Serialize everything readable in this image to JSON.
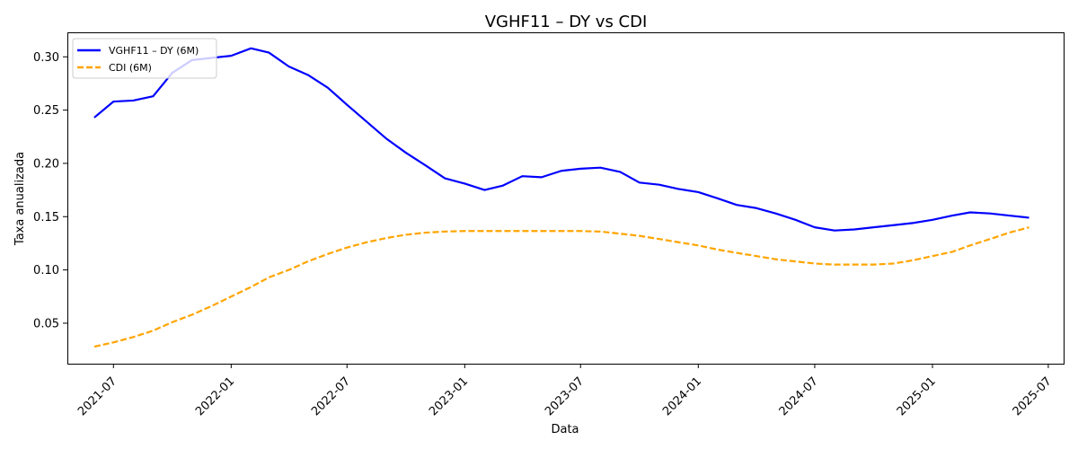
{
  "chart_data": {
    "type": "line",
    "title": "VGHF11 – DY vs CDI",
    "xlabel": "Data",
    "ylabel": "Taxa anualizada",
    "x_ticks": [
      "2021-07",
      "2022-01",
      "2022-07",
      "2023-01",
      "2023-07",
      "2024-01",
      "2024-07",
      "2025-01",
      "2025-07"
    ],
    "y_ticks": [
      "0.05",
      "0.10",
      "0.15",
      "0.20",
      "0.25",
      "0.30"
    ],
    "xlim": [
      "2021-04-20",
      "2025-07-25"
    ],
    "ylim": [
      0.012,
      0.323
    ],
    "legend_position": "top-left",
    "grid": false,
    "series": [
      {
        "name": "VGHF11 – DY (6M)",
        "color": "#0000ff",
        "style": "solid",
        "points": [
          [
            "2021-06-01",
            0.243
          ],
          [
            "2021-07-01",
            0.258
          ],
          [
            "2021-08-01",
            0.259
          ],
          [
            "2021-09-01",
            0.263
          ],
          [
            "2021-10-01",
            0.285
          ],
          [
            "2021-11-01",
            0.297
          ],
          [
            "2021-12-01",
            0.299
          ],
          [
            "2022-01-01",
            0.301
          ],
          [
            "2022-02-01",
            0.308
          ],
          [
            "2022-03-01",
            0.304
          ],
          [
            "2022-04-01",
            0.291
          ],
          [
            "2022-05-01",
            0.283
          ],
          [
            "2022-06-01",
            0.271
          ],
          [
            "2022-07-01",
            0.255
          ],
          [
            "2022-08-01",
            0.239
          ],
          [
            "2022-09-01",
            0.223
          ],
          [
            "2022-10-01",
            0.21
          ],
          [
            "2022-11-01",
            0.198
          ],
          [
            "2022-12-01",
            0.186
          ],
          [
            "2023-01-01",
            0.181
          ],
          [
            "2023-02-01",
            0.175
          ],
          [
            "2023-03-01",
            0.179
          ],
          [
            "2023-04-01",
            0.188
          ],
          [
            "2023-05-01",
            0.187
          ],
          [
            "2023-06-01",
            0.193
          ],
          [
            "2023-07-01",
            0.195
          ],
          [
            "2023-08-01",
            0.196
          ],
          [
            "2023-09-01",
            0.192
          ],
          [
            "2023-10-01",
            0.182
          ],
          [
            "2023-11-01",
            0.18
          ],
          [
            "2023-12-01",
            0.176
          ],
          [
            "2024-01-01",
            0.173
          ],
          [
            "2024-02-01",
            0.167
          ],
          [
            "2024-03-01",
            0.161
          ],
          [
            "2024-04-01",
            0.158
          ],
          [
            "2024-05-01",
            0.153
          ],
          [
            "2024-06-01",
            0.147
          ],
          [
            "2024-07-01",
            0.14
          ],
          [
            "2024-08-01",
            0.137
          ],
          [
            "2024-09-01",
            0.138
          ],
          [
            "2024-10-01",
            0.14
          ],
          [
            "2024-11-01",
            0.142
          ],
          [
            "2024-12-01",
            0.144
          ],
          [
            "2025-01-01",
            0.147
          ],
          [
            "2025-02-01",
            0.151
          ],
          [
            "2025-03-01",
            0.154
          ],
          [
            "2025-04-01",
            0.153
          ],
          [
            "2025-05-01",
            0.151
          ],
          [
            "2025-06-01",
            0.149
          ]
        ]
      },
      {
        "name": "CDI (6M)",
        "color": "#ffa500",
        "style": "dashed",
        "points": [
          [
            "2021-06-01",
            0.028
          ],
          [
            "2021-07-01",
            0.032
          ],
          [
            "2021-08-01",
            0.037
          ],
          [
            "2021-09-01",
            0.043
          ],
          [
            "2021-10-01",
            0.051
          ],
          [
            "2021-11-01",
            0.058
          ],
          [
            "2021-12-01",
            0.066
          ],
          [
            "2022-01-01",
            0.075
          ],
          [
            "2022-02-01",
            0.084
          ],
          [
            "2022-03-01",
            0.093
          ],
          [
            "2022-04-01",
            0.1
          ],
          [
            "2022-05-01",
            0.108
          ],
          [
            "2022-06-01",
            0.115
          ],
          [
            "2022-07-01",
            0.121
          ],
          [
            "2022-08-01",
            0.126
          ],
          [
            "2022-09-01",
            0.13
          ],
          [
            "2022-10-01",
            0.133
          ],
          [
            "2022-11-01",
            0.135
          ],
          [
            "2022-12-01",
            0.136
          ],
          [
            "2023-01-01",
            0.1365
          ],
          [
            "2023-02-01",
            0.1365
          ],
          [
            "2023-03-01",
            0.1365
          ],
          [
            "2023-04-01",
            0.1365
          ],
          [
            "2023-05-01",
            0.1365
          ],
          [
            "2023-06-01",
            0.1365
          ],
          [
            "2023-07-01",
            0.1365
          ],
          [
            "2023-08-01",
            0.136
          ],
          [
            "2023-09-01",
            0.134
          ],
          [
            "2023-10-01",
            0.132
          ],
          [
            "2023-11-01",
            0.129
          ],
          [
            "2023-12-01",
            0.126
          ],
          [
            "2024-01-01",
            0.123
          ],
          [
            "2024-02-01",
            0.119
          ],
          [
            "2024-03-01",
            0.116
          ],
          [
            "2024-04-01",
            0.113
          ],
          [
            "2024-05-01",
            0.11
          ],
          [
            "2024-06-01",
            0.108
          ],
          [
            "2024-07-01",
            0.106
          ],
          [
            "2024-08-01",
            0.105
          ],
          [
            "2024-09-01",
            0.105
          ],
          [
            "2024-10-01",
            0.105
          ],
          [
            "2024-11-01",
            0.106
          ],
          [
            "2024-12-01",
            0.109
          ],
          [
            "2025-01-01",
            0.113
          ],
          [
            "2025-02-01",
            0.117
          ],
          [
            "2025-03-01",
            0.123
          ],
          [
            "2025-04-01",
            0.129
          ],
          [
            "2025-05-01",
            0.135
          ],
          [
            "2025-06-01",
            0.14
          ]
        ]
      }
    ]
  }
}
